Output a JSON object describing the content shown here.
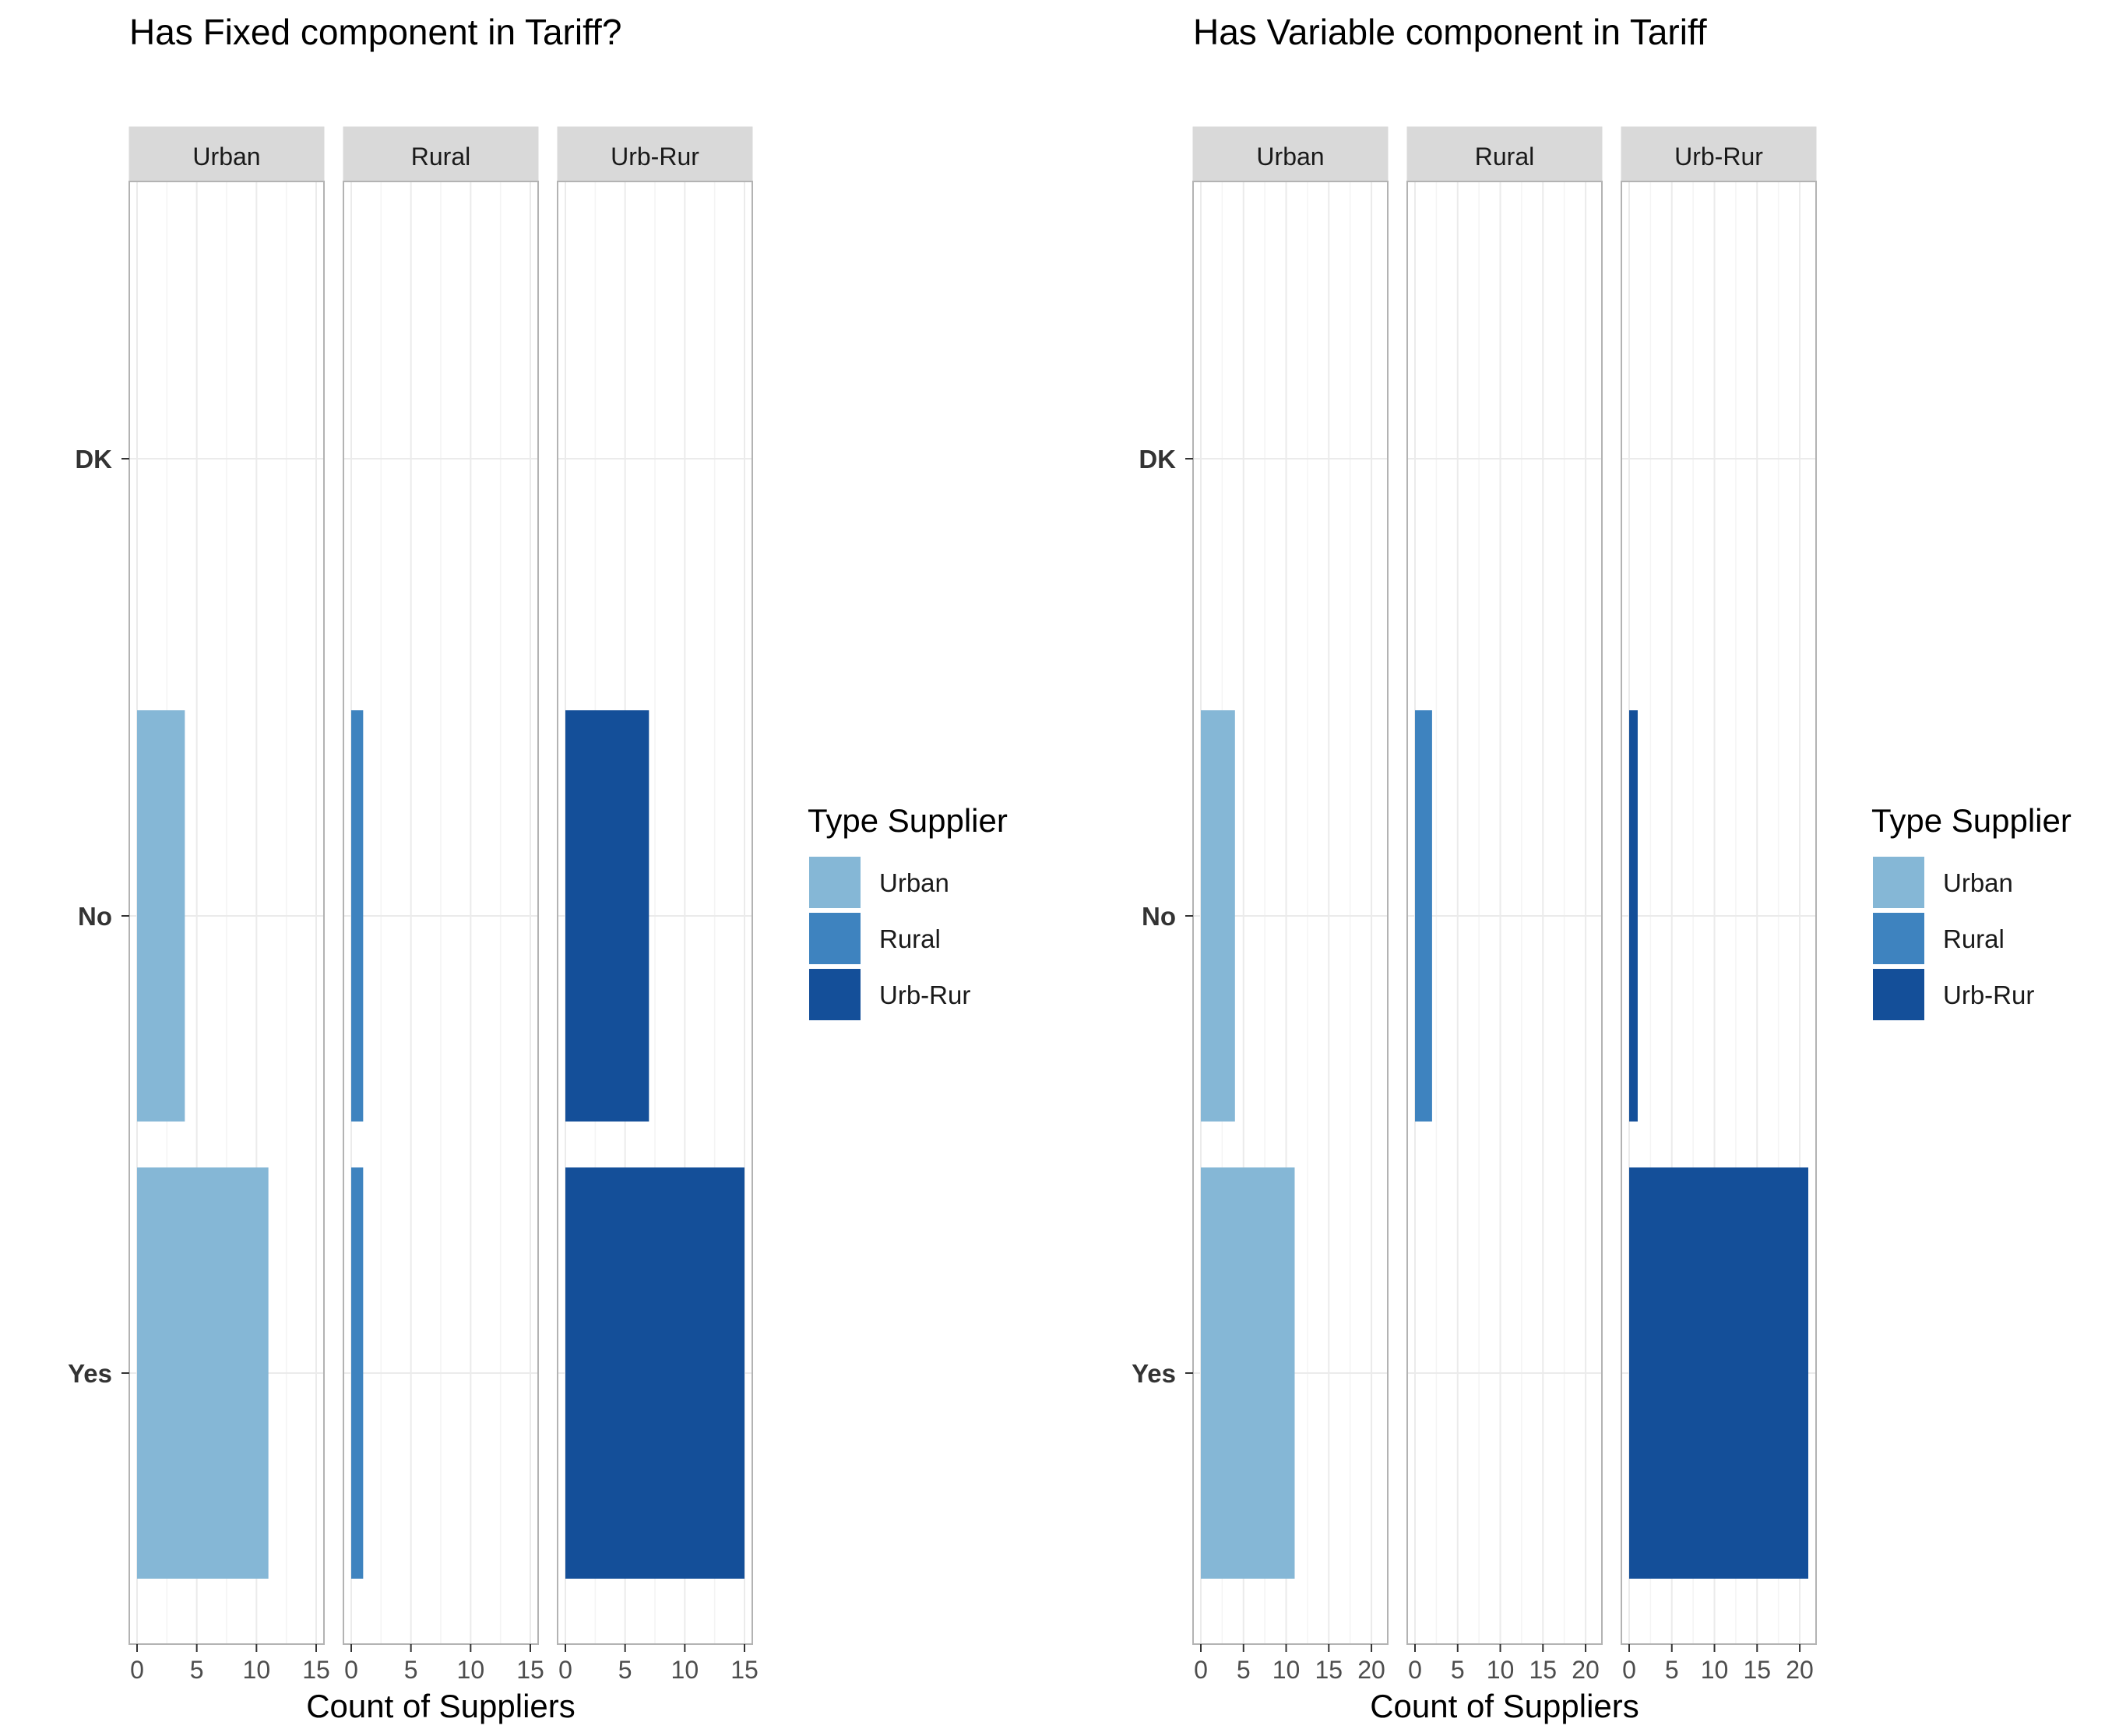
{
  "chart_data": [
    {
      "type": "bar",
      "orientation": "horizontal",
      "title": "Has Fixed component in Tariff?",
      "xlabel": "Count of Suppliers",
      "ylabel": "",
      "categories": [
        "DK",
        "No",
        "Yes"
      ],
      "xlim": [
        0,
        15
      ],
      "x_ticks": [
        0,
        5,
        10,
        15
      ],
      "x_minor_ticks": [
        2.5,
        7.5,
        12.5
      ],
      "facets": [
        {
          "label": "Urban",
          "series": "Urban",
          "values": [
            0,
            4,
            11
          ]
        },
        {
          "label": "Rural",
          "series": "Rural",
          "values": [
            0,
            1,
            1
          ]
        },
        {
          "label": "Urb-Rur",
          "series": "Urb-Rur",
          "values": [
            0,
            7,
            15
          ]
        }
      ],
      "legend": {
        "title": "Type Supplier",
        "placement": "right",
        "items": [
          {
            "label": "Urban",
            "color": "#85b7d6"
          },
          {
            "label": "Rural",
            "color": "#3e83bf"
          },
          {
            "label": "Urb-Rur",
            "color": "#144f99"
          }
        ]
      },
      "grid": true
    },
    {
      "type": "bar",
      "orientation": "horizontal",
      "title": "Has Variable component in Tariff",
      "xlabel": "Count of Suppliers",
      "ylabel": "",
      "categories": [
        "DK",
        "No",
        "Yes"
      ],
      "xlim": [
        0,
        21
      ],
      "x_ticks": [
        0,
        5,
        10,
        15,
        20
      ],
      "x_minor_ticks": [
        2.5,
        7.5,
        12.5,
        17.5
      ],
      "facets": [
        {
          "label": "Urban",
          "series": "Urban",
          "values": [
            0,
            4,
            11
          ]
        },
        {
          "label": "Rural",
          "series": "Rural",
          "values": [
            0,
            2,
            0
          ]
        },
        {
          "label": "Urb-Rur",
          "series": "Urb-Rur",
          "values": [
            0,
            1,
            21
          ]
        }
      ],
      "legend": {
        "title": "Type Supplier",
        "placement": "right",
        "items": [
          {
            "label": "Urban",
            "color": "#85b7d6"
          },
          {
            "label": "Rural",
            "color": "#3e83bf"
          },
          {
            "label": "Urb-Rur",
            "color": "#144f99"
          }
        ]
      },
      "grid": true
    }
  ]
}
